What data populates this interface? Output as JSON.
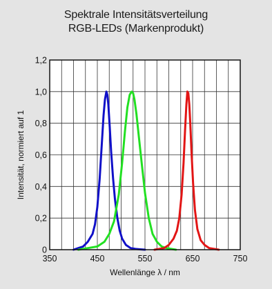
{
  "chart_data": {
    "type": "line",
    "title": "Spektrale Intensitätsverteilung",
    "subtitle": "RGB-LEDs (Markenprodukt)",
    "xlabel": "Wellenlänge λ / nm",
    "ylabel": "Intensität, normiert auf 1",
    "xlim": [
      350,
      750
    ],
    "ylim": [
      0,
      1.2
    ],
    "xticks": [
      "350",
      "450",
      "550",
      "650",
      "750"
    ],
    "yticks": [
      "0",
      "0,2",
      "0,4",
      "0,6",
      "0,8",
      "1,0",
      "1,2"
    ],
    "grid": true,
    "series": [
      {
        "color": "#1010c8",
        "x": [
          400,
          410,
          420,
          430,
          440,
          445,
          450,
          455,
          460,
          463,
          466,
          469,
          471,
          473,
          476,
          479,
          483,
          487,
          492,
          497,
          502,
          510,
          520,
          530,
          540,
          550
        ],
        "y": [
          0,
          0.01,
          0.02,
          0.05,
          0.1,
          0.16,
          0.27,
          0.45,
          0.7,
          0.85,
          0.95,
          1.0,
          0.98,
          0.92,
          0.78,
          0.62,
          0.45,
          0.32,
          0.2,
          0.12,
          0.07,
          0.03,
          0.01,
          0.005,
          0.002,
          0
        ]
      },
      {
        "color": "#22e022",
        "x": [
          410,
          430,
          450,
          465,
          475,
          485,
          495,
          502,
          508,
          513,
          518,
          522,
          525,
          528,
          532,
          537,
          543,
          550,
          558,
          566,
          575,
          585,
          595,
          605,
          615
        ],
        "y": [
          0,
          0.01,
          0.02,
          0.05,
          0.1,
          0.18,
          0.35,
          0.55,
          0.75,
          0.9,
          0.98,
          1.0,
          0.99,
          0.95,
          0.86,
          0.72,
          0.55,
          0.36,
          0.2,
          0.1,
          0.05,
          0.02,
          0.01,
          0.005,
          0
        ]
      },
      {
        "color": "#e21515",
        "x": [
          570,
          590,
          600,
          610,
          617,
          622,
          627,
          631,
          634,
          637,
          639,
          641,
          643,
          645,
          648,
          651,
          655,
          660,
          667,
          675,
          685,
          695,
          705
        ],
        "y": [
          0,
          0.01,
          0.03,
          0.07,
          0.12,
          0.2,
          0.35,
          0.55,
          0.75,
          0.92,
          1.0,
          0.99,
          0.92,
          0.8,
          0.6,
          0.42,
          0.25,
          0.13,
          0.06,
          0.03,
          0.01,
          0.005,
          0
        ]
      }
    ]
  }
}
